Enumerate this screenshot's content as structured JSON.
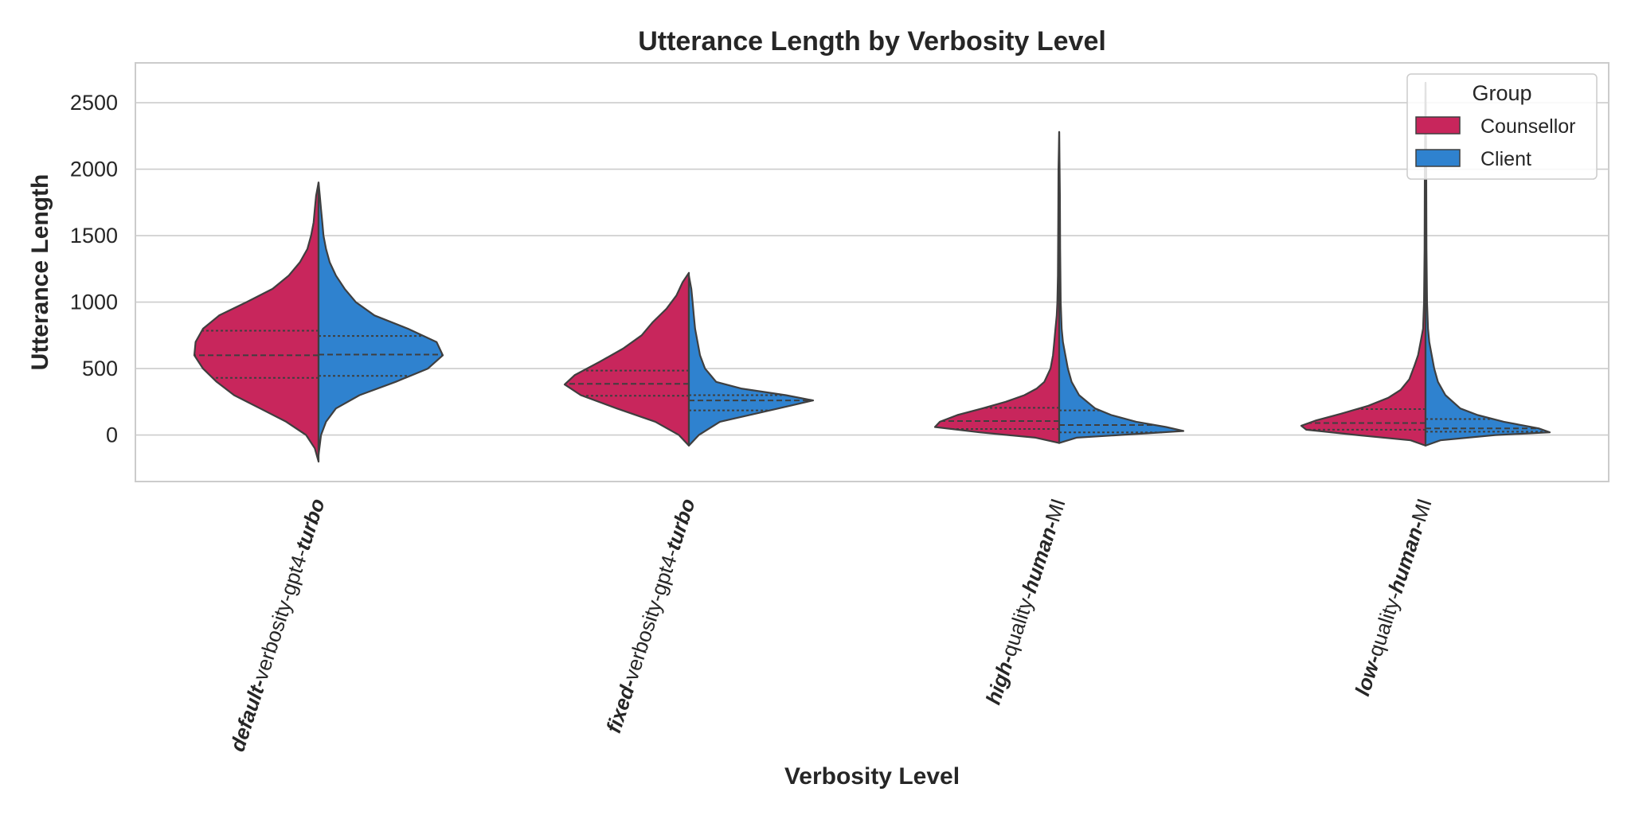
{
  "chart_data": {
    "type": "violin",
    "title": "Utterance Length by Verbosity Level",
    "xlabel": "Verbosity Level",
    "ylabel": "Utterance Length",
    "ylim": [
      -350,
      2800
    ],
    "yticks": [
      0,
      500,
      1000,
      1500,
      2000,
      2500
    ],
    "grid": "horizontal",
    "legend": {
      "title": "Group",
      "placement": "top-right",
      "entries": [
        "Counsellor",
        "Client"
      ]
    },
    "colors": {
      "Counsellor": "#C8265C",
      "Client": "#2F82CF",
      "outline": "#3F3F3F"
    },
    "categories": [
      {
        "label": [
          {
            "text": "default-",
            "bold": true
          },
          {
            "text": "verbosity-gpt4-",
            "bold": false
          },
          {
            "text": "turbo",
            "bold": true
          }
        ]
      },
      {
        "label": [
          {
            "text": "fixed-",
            "bold": true
          },
          {
            "text": "verbosity-gpt4-",
            "bold": false
          },
          {
            "text": "turbo",
            "bold": true
          }
        ]
      },
      {
        "label": [
          {
            "text": "high-",
            "bold": true
          },
          {
            "text": "quality-",
            "bold": false
          },
          {
            "text": "human-",
            "bold": true
          },
          {
            "text": "MI",
            "bold": false
          }
        ]
      },
      {
        "label": [
          {
            "text": "low-",
            "bold": true
          },
          {
            "text": "quality-",
            "bold": false
          },
          {
            "text": "human-",
            "bold": true
          },
          {
            "text": "MI",
            "bold": false
          }
        ]
      }
    ],
    "series": [
      {
        "name": "Counsellor",
        "side": "left",
        "groups": [
          {
            "quartiles": [
              430,
              600,
              785
            ],
            "profile": [
              [
                -200,
                0.0
              ],
              [
                -100,
                0.03
              ],
              [
                0,
                0.1
              ],
              [
                100,
                0.26
              ],
              [
                200,
                0.47
              ],
              [
                300,
                0.68
              ],
              [
                400,
                0.82
              ],
              [
                500,
                0.93
              ],
              [
                600,
                1.0
              ],
              [
                700,
                0.99
              ],
              [
                800,
                0.93
              ],
              [
                900,
                0.8
              ],
              [
                1000,
                0.58
              ],
              [
                1100,
                0.37
              ],
              [
                1200,
                0.24
              ],
              [
                1300,
                0.15
              ],
              [
                1400,
                0.09
              ],
              [
                1500,
                0.06
              ],
              [
                1600,
                0.04
              ],
              [
                1700,
                0.03
              ],
              [
                1800,
                0.02
              ],
              [
                1900,
                0.0
              ]
            ]
          },
          {
            "quartiles": [
              295,
              385,
              485
            ],
            "profile": [
              [
                -80,
                0.0
              ],
              [
                0,
                0.08
              ],
              [
                100,
                0.27
              ],
              [
                200,
                0.58
              ],
              [
                300,
                0.87
              ],
              [
                380,
                1.0
              ],
              [
                450,
                0.92
              ],
              [
                550,
                0.72
              ],
              [
                650,
                0.53
              ],
              [
                750,
                0.38
              ],
              [
                850,
                0.29
              ],
              [
                950,
                0.18
              ],
              [
                1050,
                0.1
              ],
              [
                1150,
                0.05
              ],
              [
                1220,
                0.0
              ]
            ]
          },
          {
            "quartiles": [
              45,
              105,
              205
            ],
            "profile": [
              [
                -60,
                0.0
              ],
              [
                -20,
                0.19
              ],
              [
                20,
                0.64
              ],
              [
                60,
                1.0
              ],
              [
                100,
                0.96
              ],
              [
                150,
                0.82
              ],
              [
                200,
                0.62
              ],
              [
                250,
                0.43
              ],
              [
                300,
                0.28
              ],
              [
                350,
                0.18
              ],
              [
                400,
                0.12
              ],
              [
                500,
                0.07
              ],
              [
                600,
                0.05
              ],
              [
                700,
                0.04
              ],
              [
                800,
                0.03
              ],
              [
                900,
                0.02
              ],
              [
                1000,
                0.015
              ],
              [
                1200,
                0.01
              ],
              [
                1600,
                0.008
              ],
              [
                2000,
                0.006
              ],
              [
                2280,
                0.0
              ]
            ]
          },
          {
            "quartiles": [
              40,
              90,
              195
            ],
            "profile": [
              [
                -80,
                0.0
              ],
              [
                -40,
                0.12
              ],
              [
                0,
                0.55
              ],
              [
                40,
                0.96
              ],
              [
                70,
                1.0
              ],
              [
                110,
                0.88
              ],
              [
                160,
                0.68
              ],
              [
                220,
                0.46
              ],
              [
                280,
                0.3
              ],
              [
                340,
                0.2
              ],
              [
                420,
                0.13
              ],
              [
                520,
                0.09
              ],
              [
                600,
                0.06
              ],
              [
                700,
                0.04
              ],
              [
                800,
                0.02
              ],
              [
                1000,
                0.012
              ],
              [
                1400,
                0.008
              ],
              [
                2000,
                0.006
              ],
              [
                2650,
                0.0
              ]
            ]
          }
        ]
      },
      {
        "name": "Client",
        "side": "right",
        "groups": [
          {
            "quartiles": [
              445,
              605,
              745
            ],
            "profile": [
              [
                -150,
                0.0
              ],
              [
                0,
                0.02
              ],
              [
                100,
                0.06
              ],
              [
                200,
                0.14
              ],
              [
                300,
                0.33
              ],
              [
                400,
                0.62
              ],
              [
                500,
                0.88
              ],
              [
                600,
                1.0
              ],
              [
                700,
                0.95
              ],
              [
                800,
                0.72
              ],
              [
                900,
                0.45
              ],
              [
                1000,
                0.3
              ],
              [
                1100,
                0.21
              ],
              [
                1200,
                0.14
              ],
              [
                1300,
                0.09
              ],
              [
                1400,
                0.06
              ],
              [
                1500,
                0.04
              ],
              [
                1600,
                0.03
              ],
              [
                1700,
                0.02
              ],
              [
                1800,
                0.01
              ],
              [
                1900,
                0.0
              ]
            ]
          },
          {
            "quartiles": [
              185,
              260,
              300
            ],
            "profile": [
              [
                -80,
                0.0
              ],
              [
                0,
                0.08
              ],
              [
                100,
                0.25
              ],
              [
                200,
                0.72
              ],
              [
                260,
                1.0
              ],
              [
                300,
                0.78
              ],
              [
                350,
                0.42
              ],
              [
                400,
                0.22
              ],
              [
                500,
                0.13
              ],
              [
                600,
                0.09
              ],
              [
                700,
                0.07
              ],
              [
                800,
                0.05
              ],
              [
                900,
                0.04
              ],
              [
                1000,
                0.03
              ],
              [
                1100,
                0.02
              ],
              [
                1200,
                0.0
              ]
            ]
          },
          {
            "quartiles": [
              20,
              75,
              185
            ],
            "profile": [
              [
                -60,
                0.0
              ],
              [
                -20,
                0.14
              ],
              [
                10,
                0.66
              ],
              [
                30,
                1.0
              ],
              [
                60,
                0.86
              ],
              [
                100,
                0.62
              ],
              [
                150,
                0.42
              ],
              [
                200,
                0.29
              ],
              [
                300,
                0.16
              ],
              [
                400,
                0.1
              ],
              [
                500,
                0.07
              ],
              [
                600,
                0.05
              ],
              [
                700,
                0.03
              ],
              [
                800,
                0.02
              ],
              [
                1000,
                0.012
              ],
              [
                1400,
                0.008
              ],
              [
                1800,
                0.006
              ],
              [
                2280,
                0.0
              ]
            ]
          },
          {
            "quartiles": [
              25,
              50,
              120
            ],
            "profile": [
              [
                -80,
                0.0
              ],
              [
                -40,
                0.12
              ],
              [
                0,
                0.56
              ],
              [
                20,
                1.0
              ],
              [
                50,
                0.91
              ],
              [
                100,
                0.63
              ],
              [
                150,
                0.42
              ],
              [
                200,
                0.28
              ],
              [
                300,
                0.16
              ],
              [
                400,
                0.1
              ],
              [
                500,
                0.07
              ],
              [
                600,
                0.05
              ],
              [
                700,
                0.03
              ],
              [
                800,
                0.02
              ],
              [
                1000,
                0.012
              ],
              [
                1400,
                0.008
              ],
              [
                2000,
                0.006
              ],
              [
                2650,
                0.0
              ]
            ]
          }
        ]
      }
    ]
  }
}
